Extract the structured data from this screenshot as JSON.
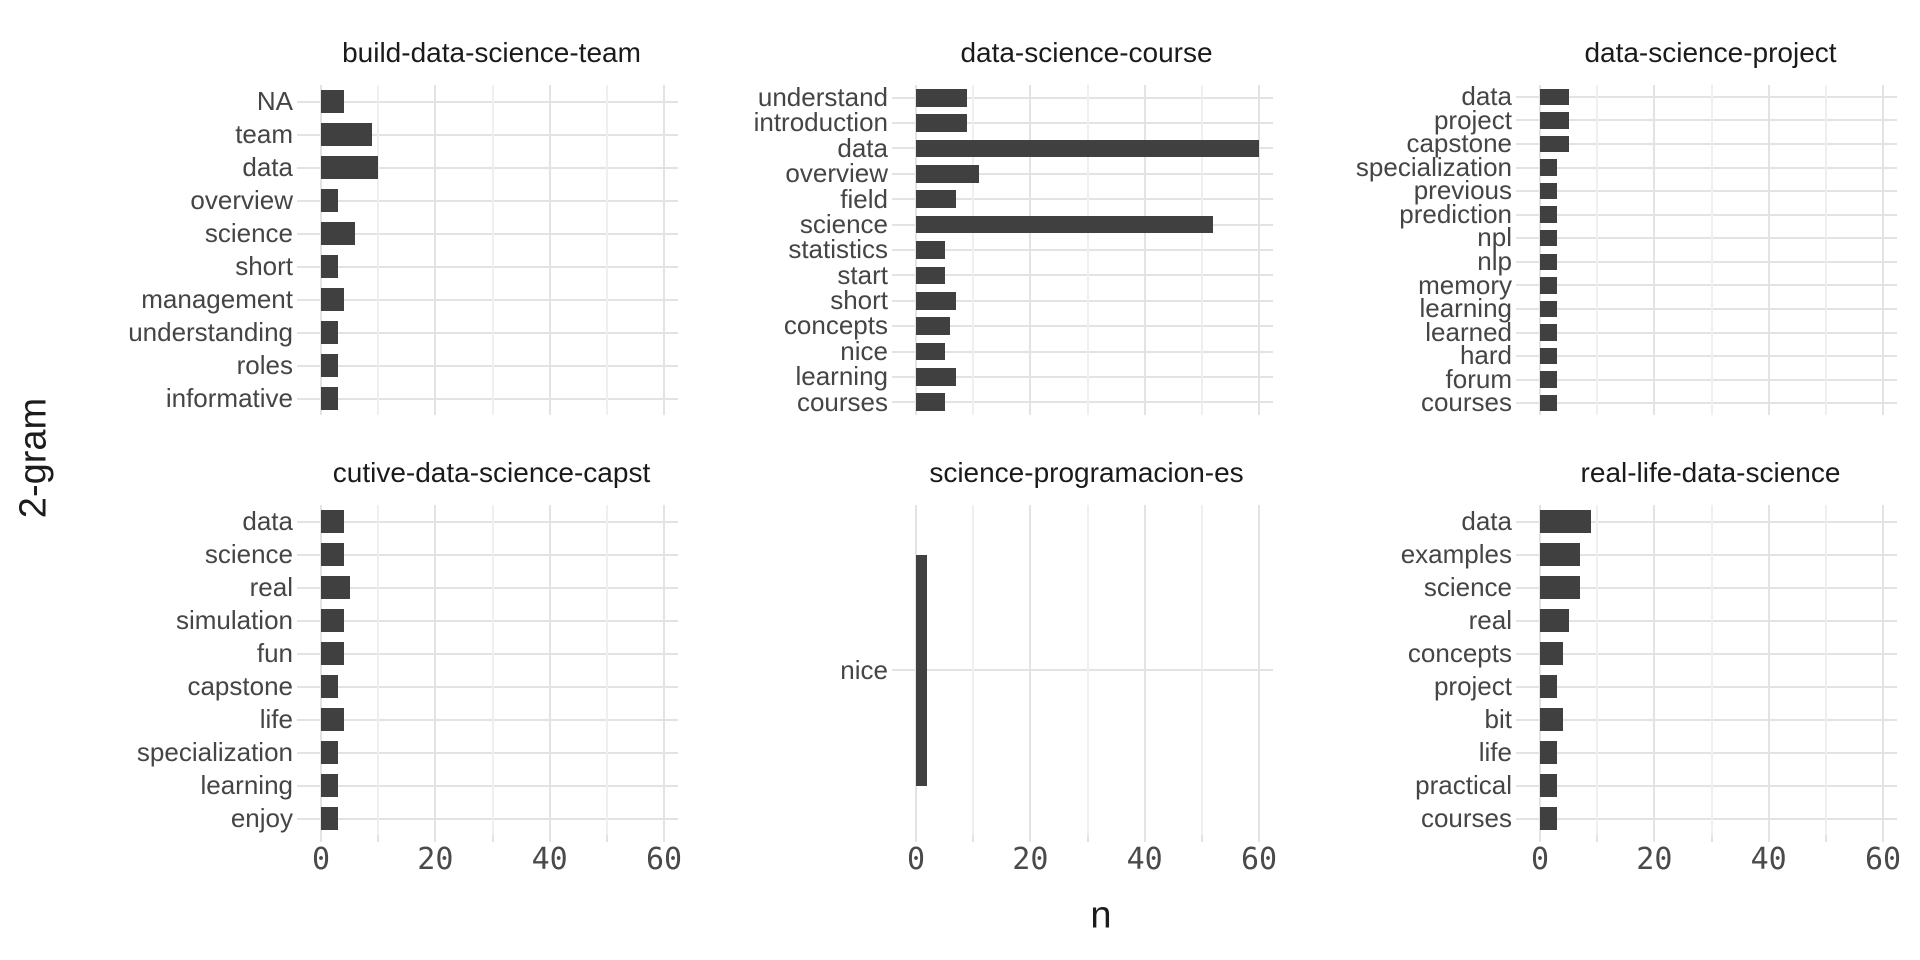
{
  "figure": {
    "x_axis_title": "n",
    "y_axis_title": "2-gram",
    "x_tick_labels": [
      "0",
      "20",
      "40",
      "60"
    ]
  },
  "colors": {
    "bar": "#404040",
    "grid_major": "#e3e3e3",
    "grid_minor": "#efefef",
    "facet_title_text": "#1a1a1a",
    "axis_text": "#4a4a4a",
    "background": "#ffffff"
  },
  "chart_data": {
    "type": "bar",
    "orientation": "horizontal",
    "xlabel": "n",
    "ylabel": "2-gram",
    "x_ticks": [
      0,
      20,
      40,
      60
    ],
    "xlim": [
      -3,
      63
    ],
    "grid": "major and minor vertical gridlines, major horizontal per category",
    "legend": "none",
    "layout": "facet grid 2 rows x 3 cols, shared x axis, bottom row shows tick labels",
    "facets": [
      {
        "title": "build-data-science-team",
        "categories": [
          "NA",
          "team",
          "data",
          "overview",
          "science",
          "short",
          "management",
          "understanding",
          "roles",
          "informative"
        ],
        "values": [
          4,
          9,
          10,
          3,
          6,
          3,
          4,
          3,
          3,
          3
        ]
      },
      {
        "title": "data-science-course",
        "categories": [
          "understand",
          "introduction",
          "data",
          "overview",
          "field",
          "science",
          "statistics",
          "start",
          "short",
          "concepts",
          "nice",
          "learning",
          "courses"
        ],
        "values": [
          9,
          9,
          60,
          11,
          7,
          52,
          5,
          5,
          7,
          6,
          5,
          7,
          5
        ]
      },
      {
        "title": "data-science-project",
        "categories": [
          "data",
          "project",
          "capstone",
          "specialization",
          "previous",
          "prediction",
          "npl",
          "nlp",
          "memory",
          "learning",
          "learned",
          "hard",
          "forum",
          "courses"
        ],
        "values": [
          5,
          5,
          5,
          3,
          3,
          3,
          3,
          3,
          3,
          3,
          3,
          3,
          3,
          3
        ]
      },
      {
        "title": "cutive-data-science-capst",
        "categories": [
          "data",
          "science",
          "real",
          "simulation",
          "fun",
          "capstone",
          "life",
          "specialization",
          "learning",
          "enjoy"
        ],
        "values": [
          4,
          4,
          5,
          4,
          4,
          3,
          4,
          3,
          3,
          3
        ]
      },
      {
        "title": "science-programacion-es",
        "categories": [
          "nice"
        ],
        "values": [
          2
        ]
      },
      {
        "title": "real-life-data-science",
        "categories": [
          "data",
          "examples",
          "science",
          "real",
          "concepts",
          "project",
          "bit",
          "life",
          "practical",
          "courses"
        ],
        "values": [
          9,
          7,
          7,
          5,
          4,
          3,
          4,
          3,
          3,
          3
        ]
      }
    ]
  }
}
